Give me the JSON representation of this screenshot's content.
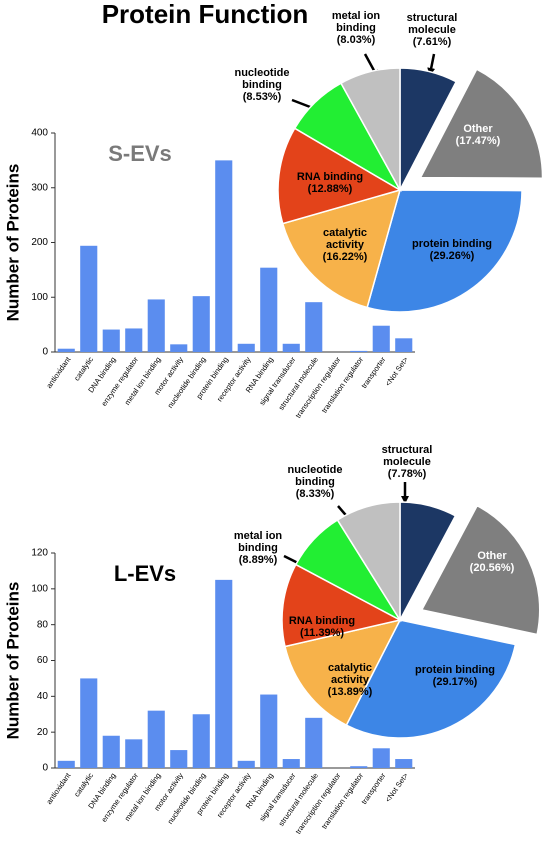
{
  "title": "Protein Function",
  "chart_data": [
    {
      "type": "bar",
      "title": "S-EVs",
      "title_color": "#7a7a7a",
      "ylabel": "Number of Proteins",
      "color": "#5b8def",
      "categories": [
        "antioxidant",
        "catalytic",
        "DNA binding",
        "enzyme regulator",
        "metal ion binding",
        "motor activity",
        "nucleotide binding",
        "protein binding",
        "receptor activity",
        "RNA binding",
        "signal transducer",
        "structural molecule",
        "transcription regulator",
        "translation regulator",
        "transporter",
        "<Not Set>"
      ],
      "values": [
        6,
        194,
        41,
        43,
        96,
        14,
        102,
        350,
        15,
        154,
        15,
        91,
        0,
        2,
        48,
        25
      ],
      "ylim": [
        0,
        400
      ],
      "yticks": [
        0,
        100,
        200,
        300,
        400
      ]
    },
    {
      "type": "pie",
      "categories": [
        "structural molecule",
        "Other",
        "protein binding",
        "catalytic activity",
        "RNA binding",
        "nucleotide binding",
        "metal ion binding"
      ],
      "values": [
        7.61,
        17.47,
        29.26,
        16.22,
        12.88,
        8.53,
        8.03
      ],
      "value_labels": [
        "(7.61%)",
        "(17.47%)",
        "(29.26%)",
        "(16.22%)",
        "(12.88%)",
        "(8.53%)",
        "(8.03%)"
      ],
      "colors": [
        "#1c3764",
        "#7f7f7f",
        "#3d86e6",
        "#f7b24a",
        "#e3431a",
        "#22ee33",
        "#c0c0c0"
      ],
      "explode": [
        false,
        true,
        false,
        false,
        false,
        false,
        false
      ]
    },
    {
      "type": "bar",
      "title": "L-EVs",
      "title_color": "#000000",
      "ylabel": "Number of Proteins",
      "color": "#5b8def",
      "categories": [
        "antioxidant",
        "catalytic",
        "DNA binding",
        "enzyme regulator",
        "metal ion binding",
        "motor activity",
        "nucleotide binding",
        "protein binding",
        "receptor activity",
        "RNA binding",
        "signal transducer",
        "structural molecule",
        "transcription regulator",
        "translation regulator",
        "transporter",
        "<Not Set>"
      ],
      "values": [
        4,
        50,
        18,
        16,
        32,
        10,
        30,
        105,
        4,
        41,
        5,
        28,
        0,
        1,
        11,
        5
      ],
      "ylim": [
        0,
        120
      ],
      "yticks": [
        0,
        20,
        40,
        60,
        80,
        100,
        120
      ]
    },
    {
      "type": "pie",
      "categories": [
        "structural molecule",
        "Other",
        "protein binding",
        "catalytic activity",
        "RNA binding",
        "nucleotide binding",
        "metal ion binding"
      ],
      "values": [
        7.78,
        20.56,
        29.17,
        13.89,
        11.39,
        8.33,
        8.89
      ],
      "value_labels": [
        "(7.78%)",
        "(20.56%)",
        "(29.17%)",
        "(13.89%)",
        "(11.39%)",
        "(8.33%)",
        "(8.89%)"
      ],
      "colors": [
        "#1c3764",
        "#7f7f7f",
        "#3d86e6",
        "#f7b24a",
        "#e3431a",
        "#22ee33",
        "#c0c0c0"
      ],
      "explode": [
        false,
        true,
        false,
        false,
        false,
        false,
        false
      ]
    }
  ]
}
